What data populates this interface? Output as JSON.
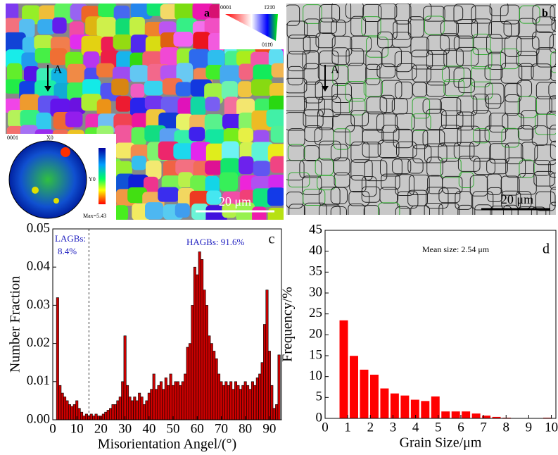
{
  "image_panels": [
    {
      "label": "a",
      "marker": "A",
      "scale_bar": "20 μm",
      "ipf_key": {
        "top_left": "0001",
        "top_right": "1̄21̄0",
        "bottom": "011̄0"
      },
      "pole_figure": {
        "title": "0001",
        "x_axis": "X0",
        "y_axis": "Y0",
        "colorbar_ticks": [
          1,
          2,
          3,
          4,
          5
        ],
        "max": "Max=5.43"
      }
    },
    {
      "label": "b",
      "marker": "A",
      "scale_bar": "20 μm"
    }
  ],
  "chart_data": [
    {
      "type": "bar",
      "panel": "c",
      "x_label": "Misorientation Angel/(°)",
      "y_label": "Number Fraction",
      "color": "#cc0000",
      "annotations": [
        "LAGBs:",
        "8.4%",
        "HAGBs: 91.6%"
      ],
      "boundary_line": 15,
      "x": [
        2,
        3,
        4,
        5,
        6,
        7,
        8,
        9,
        10,
        11,
        12,
        13,
        14,
        15,
        16,
        17,
        18,
        19,
        20,
        21,
        22,
        23,
        24,
        25,
        26,
        27,
        28,
        29,
        30,
        31,
        32,
        33,
        34,
        35,
        36,
        37,
        38,
        39,
        40,
        41,
        42,
        43,
        44,
        45,
        46,
        47,
        48,
        49,
        50,
        51,
        52,
        53,
        54,
        55,
        56,
        57,
        58,
        59,
        60,
        61,
        62,
        63,
        64,
        65,
        66,
        67,
        68,
        69,
        70,
        71,
        72,
        73,
        74,
        75,
        76,
        77,
        78,
        79,
        80,
        81,
        82,
        83,
        84,
        85,
        86,
        87,
        88,
        89,
        90,
        91,
        92,
        93,
        94
      ],
      "values": [
        0.032,
        0.009,
        0.007,
        0.006,
        0.005,
        0.004,
        0.0035,
        0.004,
        0.005,
        0.003,
        0.002,
        0.001,
        0.0015,
        0.001,
        0.0015,
        0.001,
        0.0015,
        0.001,
        0.001,
        0.0015,
        0.002,
        0.0025,
        0.003,
        0.004,
        0.004,
        0.005,
        0.006,
        0.01,
        0.022,
        0.009,
        0.006,
        0.005,
        0.006,
        0.005,
        0.007,
        0.006,
        0.004,
        0.005,
        0.007,
        0.008,
        0.012,
        0.008,
        0.009,
        0.01,
        0.008,
        0.011,
        0.009,
        0.012,
        0.009,
        0.01,
        0.01,
        0.009,
        0.01,
        0.012,
        0.019,
        0.02,
        0.03,
        0.04,
        0.038,
        0.044,
        0.042,
        0.034,
        0.03,
        0.022,
        0.02,
        0.018,
        0.016,
        0.012,
        0.01,
        0.009,
        0.01,
        0.009,
        0.01,
        0.008,
        0.01,
        0.009,
        0.008,
        0.009,
        0.01,
        0.009,
        0.008,
        0.01,
        0.009,
        0.011,
        0.012,
        0.015,
        0.025,
        0.034,
        0.018,
        0.009,
        0.003,
        0.004,
        0.017
      ],
      "xlim": [
        0,
        95
      ],
      "ylim": [
        0,
        0.05
      ],
      "xticks": [
        0,
        10,
        20,
        30,
        40,
        50,
        60,
        70,
        80,
        90
      ],
      "yticks": [
        {
          "value": 0,
          "label": "0.00"
        },
        {
          "value": 0.01,
          "label": "0.01"
        },
        {
          "value": 0.02,
          "label": "0.02"
        },
        {
          "value": 0.03,
          "label": "0.03"
        },
        {
          "value": 0.04,
          "label": "0.04"
        },
        {
          "value": 0.05,
          "label": "0.05"
        }
      ]
    },
    {
      "type": "histogram",
      "panel": "d",
      "x_label": "Grain Size/μm",
      "y_label": "Frequency/%",
      "color": "#ff0000",
      "annotations": [
        "Mean size: 2.54 μm"
      ],
      "bins": [
        0.6,
        1.05,
        1.5,
        1.95,
        2.4,
        2.85,
        3.3,
        3.75,
        4.2,
        4.65,
        5.1,
        5.55,
        6.0,
        6.45,
        6.9,
        7.35,
        7.8,
        8.25,
        8.7,
        9.15,
        9.6,
        10.05
      ],
      "values": [
        23.5,
        15,
        11.7,
        10.5,
        7.2,
        6,
        5.5,
        4.5,
        4.2,
        5.3,
        1.7,
        1.7,
        1.7,
        1.2,
        0.7,
        0.4,
        0.2,
        0,
        0,
        0,
        0.2
      ],
      "xlim": [
        0,
        10.2
      ],
      "ylim": [
        0,
        45
      ],
      "xticks": [
        0,
        1,
        2,
        3,
        4,
        5,
        6,
        7,
        8,
        9,
        10
      ],
      "yticks": [
        0,
        5,
        10,
        15,
        20,
        25,
        30,
        35,
        40,
        45
      ]
    }
  ]
}
